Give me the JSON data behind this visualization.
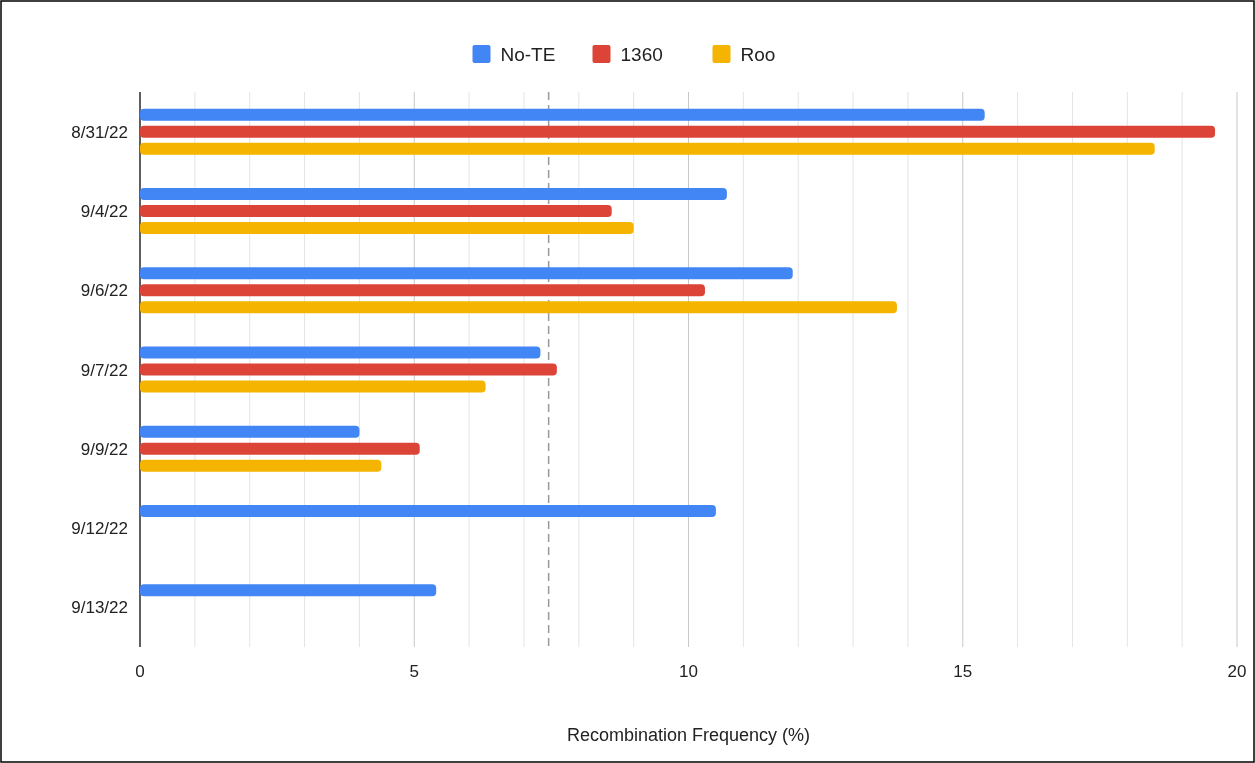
{
  "chart_data": {
    "type": "bar",
    "orientation": "horizontal",
    "xlabel": "Recombination Frequency (%)",
    "categories": [
      "8/31/22",
      "9/4/22",
      "9/6/22",
      "9/7/22",
      "9/9/22",
      "9/12/22",
      "9/13/22"
    ],
    "series": [
      {
        "name": "No-TE",
        "color": "#4285f4",
        "values": [
          15.4,
          10.7,
          11.9,
          7.3,
          4.0,
          10.5,
          5.4
        ]
      },
      {
        "name": "1360",
        "color": "#db4437",
        "values": [
          19.6,
          8.6,
          10.3,
          7.6,
          5.1,
          null,
          null
        ]
      },
      {
        "name": "Roo",
        "color": "#f4b400",
        "values": [
          18.5,
          9.0,
          13.8,
          6.3,
          4.4,
          null,
          null
        ]
      }
    ],
    "xlim": [
      0,
      20
    ],
    "xticks": [
      0,
      {
        "value": 1,
        "label": null
      },
      {
        "value": 2,
        "label": null
      },
      {
        "value": 3,
        "label": null
      },
      {
        "value": 4,
        "label": null
      },
      5,
      {
        "value": 6,
        "label": null
      },
      {
        "value": 7,
        "label": null
      },
      {
        "value": 8,
        "label": null
      },
      {
        "value": 9,
        "label": null
      },
      10,
      {
        "value": 11,
        "label": null
      },
      {
        "value": 12,
        "label": null
      },
      {
        "value": 13,
        "label": null
      },
      {
        "value": 14,
        "label": null
      },
      15,
      {
        "value": 16,
        "label": null
      },
      {
        "value": 17,
        "label": null
      },
      {
        "value": 18,
        "label": null
      },
      {
        "value": 19,
        "label": null
      },
      20
    ],
    "grid": "x",
    "legend": "top",
    "ref_lines": [
      {
        "axis": "x",
        "value": 7.45,
        "color": "#999999",
        "line_style": "dashed"
      }
    ]
  }
}
